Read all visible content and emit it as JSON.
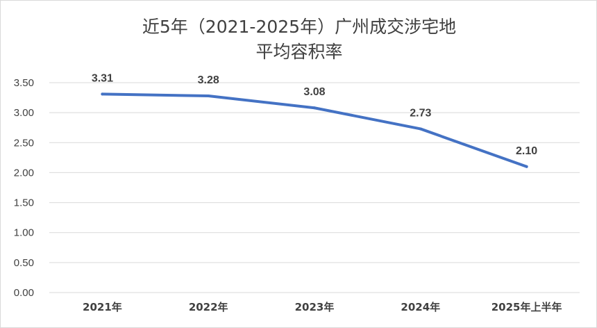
{
  "chart_data": {
    "type": "line",
    "title_lines": [
      "近5年（2021-2025年）广州成交涉宅地",
      "平均容积率"
    ],
    "categories": [
      "2021年",
      "2022年",
      "2023年",
      "2024年",
      "2025年上半年"
    ],
    "series": [
      {
        "values": [
          3.31,
          3.28,
          3.08,
          2.73,
          2.1
        ]
      }
    ],
    "data_labels": [
      "3.31",
      "3.28",
      "3.08",
      "2.73",
      "2.10"
    ],
    "y_ticks": [
      "0.00",
      "0.50",
      "1.00",
      "1.50",
      "2.00",
      "2.50",
      "3.00",
      "3.50"
    ],
    "ylim": [
      0,
      3.5
    ],
    "grid": true,
    "legend": "none",
    "line_color": "#4472c4"
  }
}
